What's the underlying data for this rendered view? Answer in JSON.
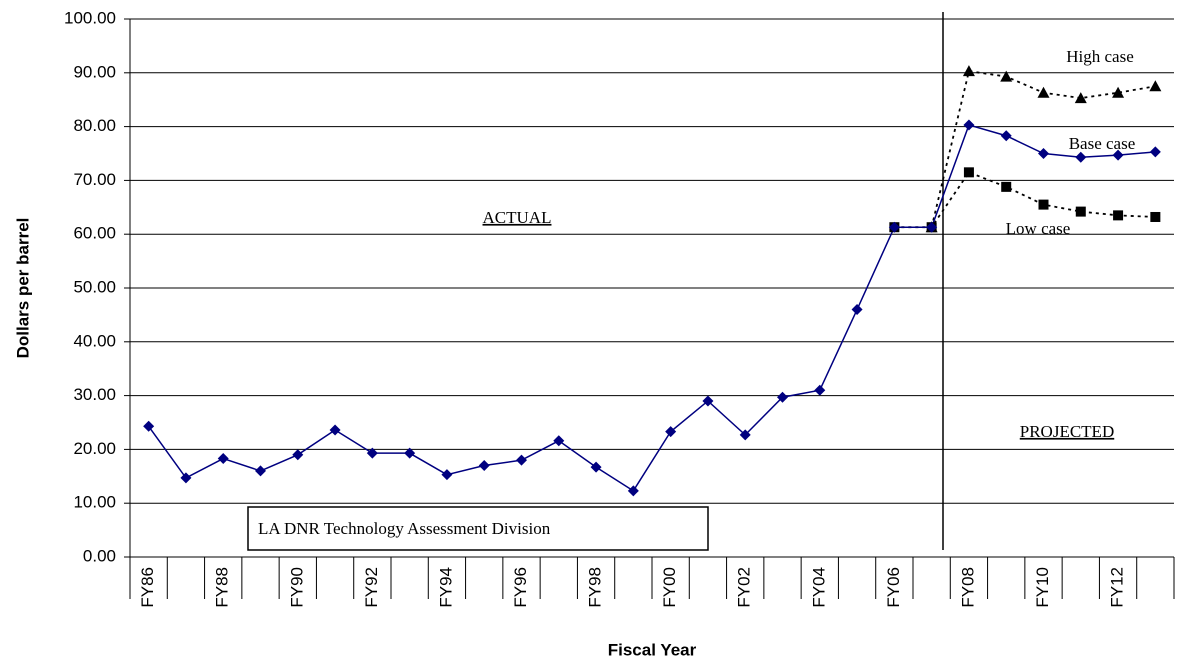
{
  "chart_data": {
    "type": "line",
    "x_label": "Fiscal Year",
    "y_label": "Dollars per barrel",
    "categories": [
      "FY86",
      null,
      "FY88",
      null,
      "FY90",
      null,
      "FY92",
      null,
      "FY94",
      null,
      "FY96",
      null,
      "FY98",
      null,
      "FY00",
      null,
      "FY02",
      null,
      "FY04",
      null,
      "FY06",
      null,
      "FY08",
      null,
      "FY10",
      null,
      "FY12",
      null
    ],
    "series": [
      {
        "name": "Base case",
        "color": "#000080",
        "marker": "diamond",
        "dash": false,
        "values": [
          24.3,
          14.7,
          18.3,
          16.0,
          19.0,
          23.6,
          19.3,
          19.3,
          15.3,
          17.0,
          18.0,
          21.6,
          16.7,
          12.3,
          23.3,
          29.0,
          22.7,
          29.7,
          31.0,
          46.0,
          61.3,
          61.3,
          80.3,
          78.3,
          75.0,
          74.3,
          74.7,
          75.3
        ]
      },
      {
        "name": "High case",
        "color": "#000000",
        "marker": "triangle",
        "dash": true,
        "values": [
          null,
          null,
          null,
          null,
          null,
          null,
          null,
          null,
          null,
          null,
          null,
          null,
          null,
          null,
          null,
          null,
          null,
          null,
          null,
          null,
          null,
          61.3,
          90.3,
          89.3,
          86.3,
          85.3,
          86.3,
          87.5
        ]
      },
      {
        "name": "Low case",
        "color": "#000000",
        "marker": "square",
        "dash": true,
        "values": [
          null,
          null,
          null,
          null,
          null,
          null,
          null,
          null,
          null,
          null,
          null,
          null,
          null,
          null,
          null,
          null,
          null,
          null,
          null,
          null,
          61.3,
          61.3,
          71.5,
          68.8,
          65.5,
          64.2,
          63.5,
          63.2
        ]
      }
    ],
    "annotations": [
      "ACTUAL",
      "PROJECTED",
      "LA DNR Technology Assessment Division"
    ],
    "ylim": [
      0,
      100
    ],
    "yticks": [
      {
        "value": 0,
        "label": "0.00"
      },
      {
        "value": 10,
        "label": "10.00"
      },
      {
        "value": 20,
        "label": "20.00"
      },
      {
        "value": 30,
        "label": "30.00"
      },
      {
        "value": 40,
        "label": "40.00"
      },
      {
        "value": 50,
        "label": "50.00"
      },
      {
        "value": 60,
        "label": "60.00"
      },
      {
        "value": 70,
        "label": "70.00"
      },
      {
        "value": 80,
        "label": "80.00"
      },
      {
        "value": 90,
        "label": "90.00"
      },
      {
        "value": 100,
        "label": "100.00"
      }
    ],
    "grid": true
  }
}
